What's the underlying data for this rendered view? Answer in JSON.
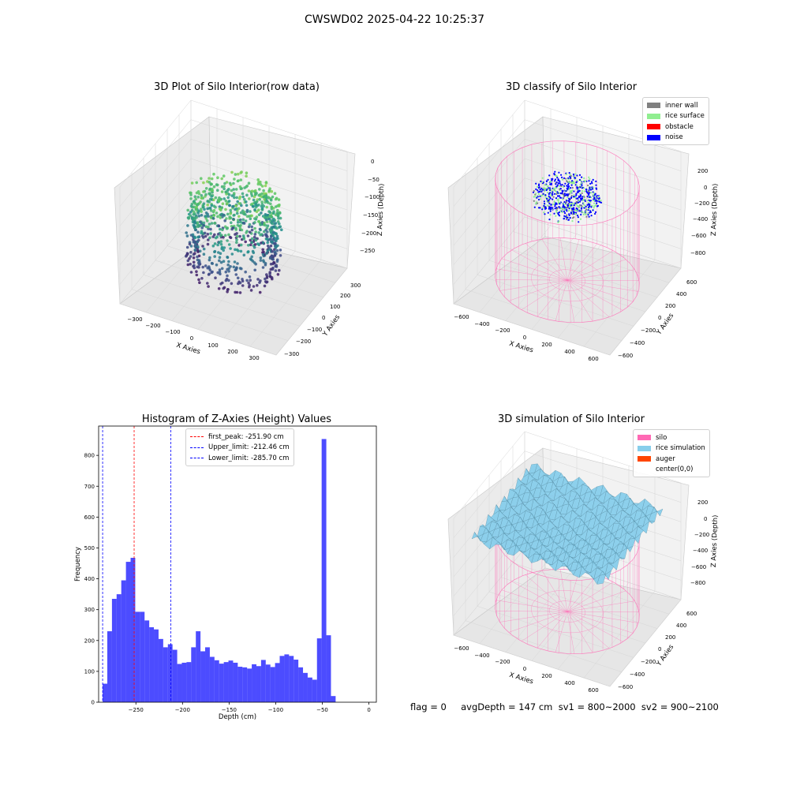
{
  "figure": {
    "suptitle": "CWSWD02 2025-04-22 10:25:37",
    "footer": "flag = 0     avgDepth = 147 cm  sv1 = 800~2000  sv2 = 900~2100"
  },
  "colors": {
    "inner_wall": "#808080",
    "rice_surface": "#90ee90",
    "obstacle": "#ff0000",
    "noise": "#0000ff",
    "silo": "#ff69b4",
    "rice_simulation": "#87ceeb",
    "auger": "#ff4500",
    "histogram": "#0000ff"
  },
  "chart_data": [
    {
      "type": "scatter",
      "title": "3D Plot of Silo Interior(row data)",
      "xlabel": "X Axies",
      "ylabel": "Y Axies",
      "zlabel": "Z Axies (Depth)",
      "xticks": [
        "−300",
        "−200",
        "−100",
        "0",
        "100",
        "200",
        "300"
      ],
      "yticks": [
        "−300",
        "−200",
        "−100",
        "0",
        "100",
        "200",
        "300"
      ],
      "zticks": [
        "0",
        "−50",
        "−100",
        "−150",
        "−200",
        "−250"
      ],
      "colormap": "viridis"
    },
    {
      "type": "scatter",
      "title": "3D classify of Silo Interior",
      "xlabel": "X Axies",
      "ylabel": "Y Axies",
      "zlabel": "Z Axies (Depth)",
      "xticks": [
        "−600",
        "−400",
        "−200",
        "0",
        "200",
        "400",
        "600"
      ],
      "yticks": [
        "−600",
        "−400",
        "−200",
        "0",
        "200",
        "400",
        "600"
      ],
      "zticks": [
        "200",
        "0",
        "−200",
        "−400",
        "−600",
        "−800"
      ],
      "legend": [
        {
          "label": "inner wall",
          "color": "#808080"
        },
        {
          "label": "rice surface",
          "color": "#90ee90"
        },
        {
          "label": "obstacle",
          "color": "#ff0000"
        },
        {
          "label": "noise",
          "color": "#0000ff"
        }
      ]
    },
    {
      "type": "bar",
      "title": "Histogram of Z-Axies (Height) Values",
      "xlabel": "Depth (cm)",
      "ylabel": "Frequency",
      "xlim": [
        -290,
        8
      ],
      "ylim": [
        0,
        895
      ],
      "xticks": [
        -250,
        -200,
        -150,
        -100,
        -50,
        0
      ],
      "yticks": [
        0,
        100,
        200,
        300,
        400,
        500,
        600,
        700,
        800
      ],
      "bin_start": -285.7,
      "bin_width": 5.0,
      "values": [
        60,
        230,
        335,
        350,
        395,
        455,
        468,
        293,
        293,
        265,
        243,
        236,
        205,
        178,
        188,
        170,
        124,
        128,
        130,
        178,
        230,
        165,
        178,
        147,
        136,
        125,
        130,
        135,
        128,
        115,
        113,
        109,
        123,
        117,
        137,
        122,
        114,
        127,
        150,
        155,
        150,
        138,
        113,
        95,
        80,
        73,
        207,
        853,
        217,
        20
      ],
      "vlines": [
        {
          "label": "first_peak: -251.90 cm",
          "x": -251.9,
          "color": "#ff0000"
        },
        {
          "label": "Upper_limit: -212.46 cm",
          "x": -212.46,
          "color": "#0000ff"
        },
        {
          "label": "Lower_limit: -285.70 cm",
          "x": -285.7,
          "color": "#0000ff"
        }
      ]
    },
    {
      "type": "area",
      "title": "3D simulation of Silo Interior",
      "xlabel": "X Axies",
      "ylabel": "Y Axies",
      "zlabel": "Z Axies (Depth)",
      "xticks": [
        "−600",
        "−400",
        "−200",
        "0",
        "200",
        "400",
        "600"
      ],
      "yticks": [
        "−600",
        "−400",
        "−200",
        "0",
        "200",
        "400",
        "600"
      ],
      "zticks": [
        "200",
        "0",
        "−200",
        "−400",
        "−600",
        "−800"
      ],
      "legend": [
        {
          "label": "silo",
          "color": "#ff69b4"
        },
        {
          "label": "rice simulation",
          "color": "#87ceeb"
        },
        {
          "label": "auger",
          "color": "#ff4500"
        },
        {
          "label": "center(0,0)",
          "color": "#ffffff"
        }
      ]
    }
  ]
}
